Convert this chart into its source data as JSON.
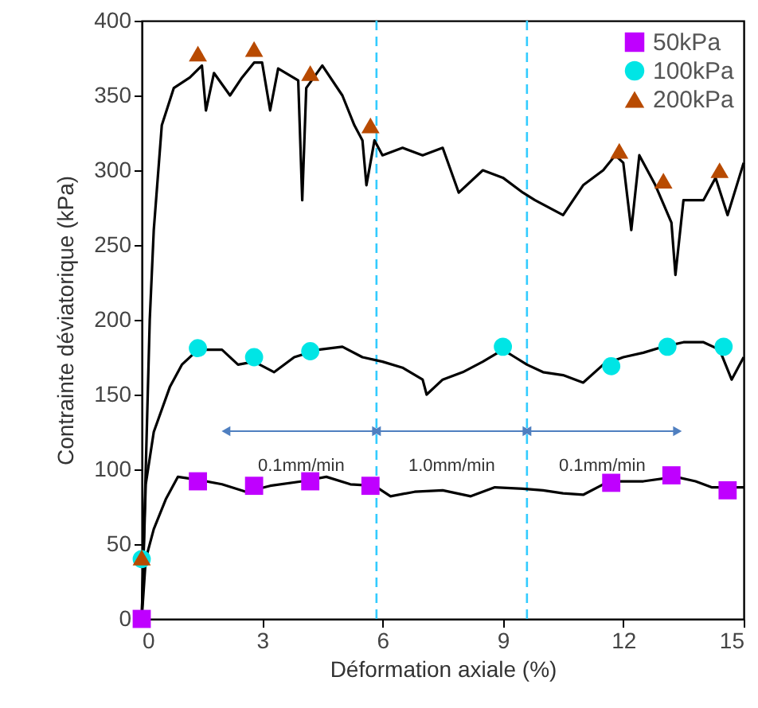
{
  "chart_data": {
    "type": "line",
    "xlabel": "Déformation axiale (%)",
    "ylabel": "Contrainte déviatorique (kPa)",
    "xlim": [
      0,
      15
    ],
    "xticks": [
      0,
      3,
      6,
      9,
      12,
      15
    ],
    "ylim": [
      0,
      400
    ],
    "yticks": [
      0,
      50,
      100,
      150,
      200,
      250,
      300,
      350,
      400
    ],
    "grid": false,
    "legend": "top right",
    "series": [
      {
        "color": "#000000",
        "line_style": "solid",
        "x": [
          0,
          0.1,
          0.2,
          0.3,
          0.5,
          0.8,
          1.2,
          1.5,
          1.6,
          1.8,
          2.2,
          2.5,
          2.8,
          3.0,
          3.2,
          3.4,
          3.9,
          4.0,
          4.1,
          4.5,
          5.0,
          5.3,
          5.5,
          5.6,
          5.8,
          6.0,
          6.5,
          7.0,
          7.5,
          7.9,
          8.5,
          9.0,
          9.5,
          9.8,
          10.5,
          11.0,
          11.5,
          11.8,
          12.0,
          12.2,
          12.4,
          12.8,
          13.2,
          13.3,
          13.5,
          14.0,
          14.3,
          14.6,
          15
        ],
        "values": [
          0,
          100,
          200,
          260,
          330,
          355,
          362,
          370,
          340,
          365,
          350,
          362,
          372,
          372,
          340,
          368,
          360,
          280,
          355,
          370,
          350,
          330,
          320,
          290,
          320,
          310,
          315,
          310,
          315,
          285,
          300,
          295,
          285,
          280,
          270,
          290,
          300,
          310,
          305,
          260,
          310,
          290,
          265,
          230,
          280,
          280,
          295,
          270,
          305
        ]
      },
      {
        "color": "#000000",
        "line_style": "solid",
        "x": [
          0,
          0.1,
          0.3,
          0.7,
          1.0,
          1.4,
          2.0,
          2.4,
          2.8,
          3.3,
          3.8,
          4.4,
          5.0,
          5.5,
          6.0,
          6.5,
          7.0,
          7.1,
          7.5,
          8.0,
          8.5,
          9.0,
          9.3,
          9.6,
          10.0,
          10.5,
          11.0,
          11.5,
          12.0,
          12.5,
          13.0,
          13.5,
          14.0,
          14.4,
          14.7,
          15
        ],
        "values": [
          0,
          90,
          125,
          155,
          170,
          180,
          180,
          170,
          172,
          165,
          175,
          180,
          182,
          175,
          172,
          168,
          160,
          150,
          160,
          165,
          172,
          180,
          175,
          170,
          165,
          163,
          158,
          170,
          175,
          178,
          182,
          185,
          185,
          180,
          160,
          175
        ]
      },
      {
        "color": "#000000",
        "line_style": "solid",
        "x": [
          0,
          0.1,
          0.3,
          0.6,
          0.9,
          1.4,
          2.0,
          2.6,
          3.2,
          4.0,
          4.6,
          5.2,
          5.8,
          6.2,
          6.8,
          7.5,
          8.2,
          8.8,
          9.5,
          10.0,
          10.5,
          11.0,
          11.5,
          11.9,
          12.5,
          13.3,
          13.8,
          14.2,
          15
        ],
        "values": [
          0,
          40,
          60,
          80,
          95,
          93,
          90,
          85,
          89,
          92,
          95,
          90,
          89,
          82,
          85,
          86,
          82,
          88,
          87,
          86,
          84,
          83,
          90,
          92,
          92,
          95,
          92,
          88,
          88
        ]
      },
      {
        "type": "scatter",
        "name": "50kPa",
        "color": "#bf00ff",
        "marker": "square",
        "x": [
          0,
          1.4,
          2.8,
          4.2,
          5.7,
          11.7,
          13.2,
          14.6
        ],
        "values": [
          0,
          92,
          89,
          92,
          89,
          91,
          96,
          86
        ]
      },
      {
        "type": "scatter",
        "name": "100kPa",
        "color": "#00e5e5",
        "marker": "circle",
        "x": [
          0,
          1.4,
          2.8,
          4.2,
          9.0,
          11.7,
          13.1,
          14.5
        ],
        "values": [
          40,
          181,
          175,
          179,
          182,
          169,
          182,
          182
        ]
      },
      {
        "type": "scatter",
        "name": "200kPa",
        "color": "#b84a00",
        "marker": "triangle",
        "x": [
          0,
          1.4,
          2.8,
          4.2,
          5.7,
          11.9,
          13.0,
          14.4
        ],
        "values": [
          41,
          378,
          381,
          365,
          330,
          313,
          293,
          300
        ]
      }
    ],
    "ref_lines": [
      {
        "axis": "x",
        "value": 5.85,
        "color": "#33ccff",
        "line_style": "dashed"
      },
      {
        "axis": "x",
        "value": 9.6,
        "color": "#33ccff",
        "line_style": "dashed"
      }
    ],
    "annotations": [
      "0.1mm/min",
      "1.0mm/min",
      "0.1mm/min"
    ]
  }
}
